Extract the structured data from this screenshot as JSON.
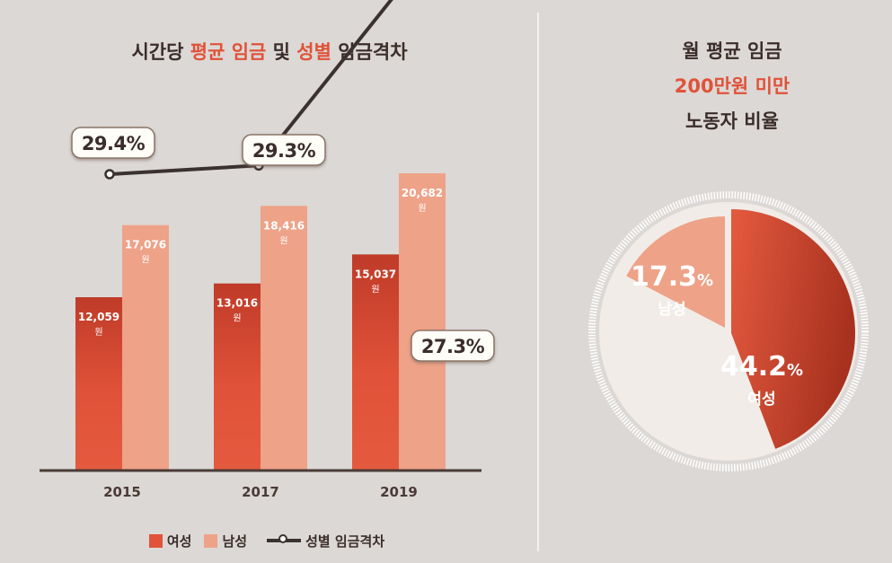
{
  "left_title": {
    "prefix": "시간당 ",
    "hl1": "평균 임금",
    "mid": " 및 ",
    "hl2": "성별",
    "suffix": " 임금격차"
  },
  "right_title": {
    "line1": "월 평균 임금",
    "line2": "200만원 미만",
    "line3": "노동자 비율"
  },
  "colors": {
    "female": "#e05239",
    "male": "#eea288",
    "gap_line": "#3a3230",
    "accent": "#e05239"
  },
  "legend": {
    "female": "여성",
    "male": "남성",
    "gap": "성별 임금격차"
  },
  "chart_data": [
    {
      "type": "bar",
      "categories": [
        "2015",
        "2017",
        "2019"
      ],
      "series": [
        {
          "name": "여성",
          "values": [
            12059,
            13016,
            15037
          ],
          "labels": [
            "12,059",
            "13,016",
            "15,037"
          ]
        },
        {
          "name": "남성",
          "values": [
            17076,
            18416,
            20682
          ],
          "labels": [
            "17,076",
            "18,416",
            "20,682"
          ]
        }
      ],
      "unit_label": "원",
      "ylim": [
        0,
        25000
      ],
      "gap_line": {
        "name": "성별 임금격차",
        "values": [
          29.4,
          29.3,
          27.3
        ],
        "labels": [
          "29.4%",
          "29.3%",
          "27.3%"
        ]
      }
    },
    {
      "type": "pie",
      "slices": [
        {
          "name": "여성",
          "value": 44.2,
          "label": "44.2"
        },
        {
          "name": "남성",
          "value": 17.3,
          "label": "17.3"
        }
      ],
      "percent_sign": "%"
    }
  ]
}
